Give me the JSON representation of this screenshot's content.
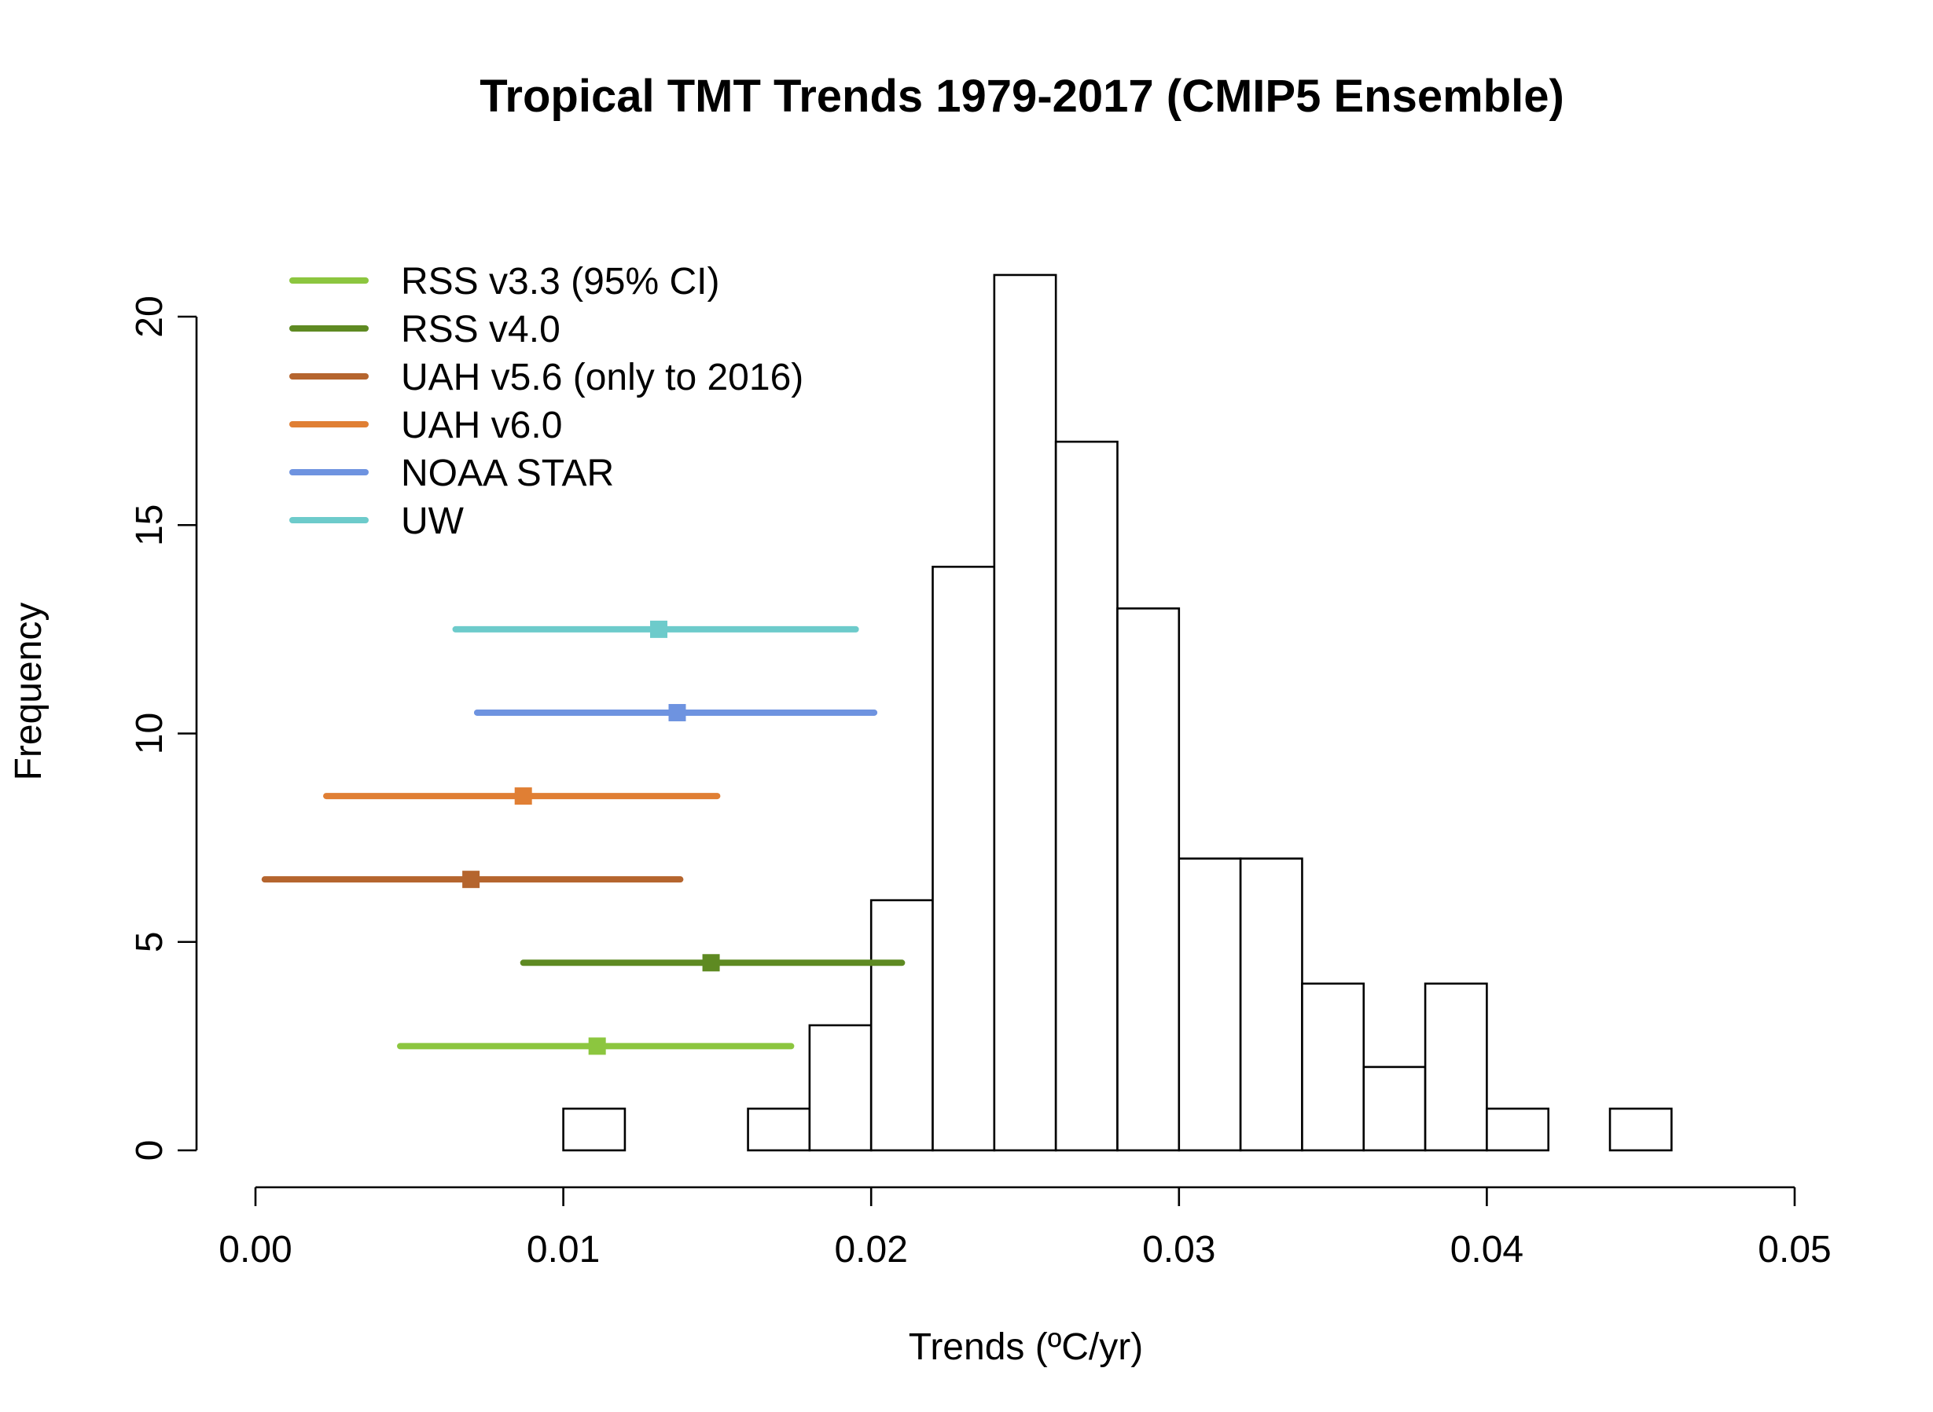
{
  "chart_data": {
    "type": "bar",
    "title": "Tropical TMT Trends 1979-2017 (CMIP5 Ensemble)",
    "xlabel": "Trends (ºC/yr)",
    "ylabel": "Frequency",
    "xlim": [
      0,
      0.05
    ],
    "ylim": [
      0,
      21
    ],
    "x_ticks": [
      "0.00",
      "0.01",
      "0.02",
      "0.03",
      "0.04",
      "0.05"
    ],
    "x_tick_values": [
      0,
      0.01,
      0.02,
      0.03,
      0.04,
      0.05
    ],
    "y_ticks": [
      "0",
      "5",
      "10",
      "15",
      "20"
    ],
    "y_tick_values": [
      0,
      5,
      10,
      15,
      20
    ],
    "histogram": {
      "bin_edges": [
        0.01,
        0.012,
        0.014,
        0.016,
        0.018,
        0.02,
        0.022,
        0.024,
        0.026,
        0.028,
        0.03,
        0.032,
        0.034,
        0.036,
        0.038,
        0.04,
        0.042,
        0.044,
        0.046
      ],
      "counts": [
        1,
        0,
        0,
        1,
        3,
        6,
        14,
        21,
        17,
        13,
        7,
        7,
        4,
        2,
        4,
        1,
        0,
        1
      ]
    },
    "series": [
      {
        "name": "RSS v3.3 (95% CI)",
        "color": "#8CC63F",
        "trend": 0.0111,
        "ci_low": 0.0047,
        "ci_high": 0.0174,
        "y": 2.5
      },
      {
        "name": "RSS v4.0",
        "color": "#5E8A22",
        "trend": 0.0148,
        "ci_low": 0.0087,
        "ci_high": 0.021,
        "y": 4.5
      },
      {
        "name": "UAH v5.6 (only to 2016)",
        "color": "#B5652E",
        "trend": 0.007,
        "ci_low": 0.0003,
        "ci_high": 0.0138,
        "y": 6.5
      },
      {
        "name": "UAH v6.0",
        "color": "#E07F34",
        "trend": 0.0087,
        "ci_low": 0.0023,
        "ci_high": 0.015,
        "y": 8.5
      },
      {
        "name": "NOAA STAR",
        "color": "#6E93E0",
        "trend": 0.0137,
        "ci_low": 0.0072,
        "ci_high": 0.0201,
        "y": 10.5
      },
      {
        "name": "UW",
        "color": "#6DCBCB",
        "trend": 0.0131,
        "ci_low": 0.0065,
        "ci_high": 0.0195,
        "y": 12.5
      }
    ],
    "legend_position": "top-left",
    "grid": false
  }
}
